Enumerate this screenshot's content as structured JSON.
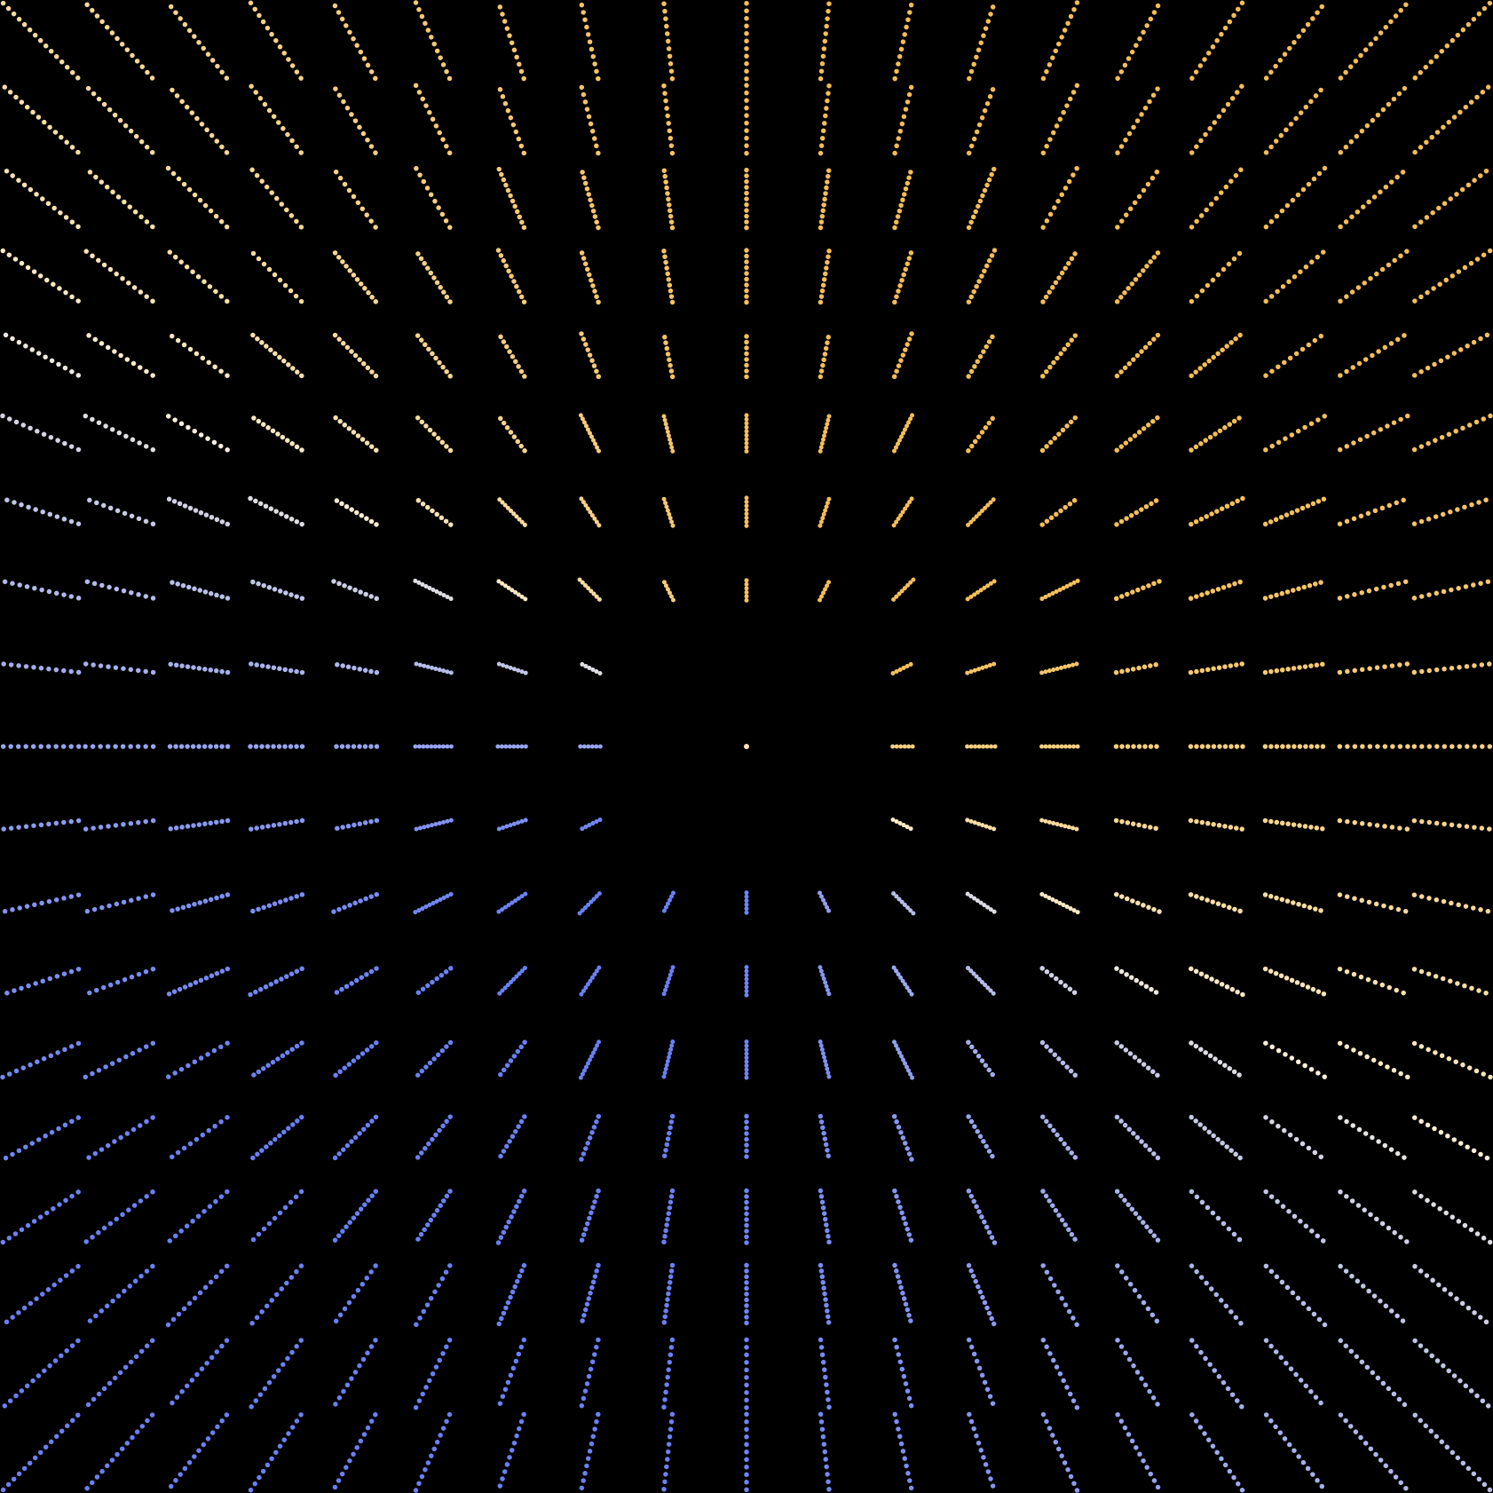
{
  "artwork": {
    "grid": {
      "rows": 19,
      "cols": 19
    },
    "background": "#000000",
    "colors": {
      "warm": "#f5bd55",
      "neutral": "#fbf3de",
      "cool": "#6a80f5"
    }
  }
}
